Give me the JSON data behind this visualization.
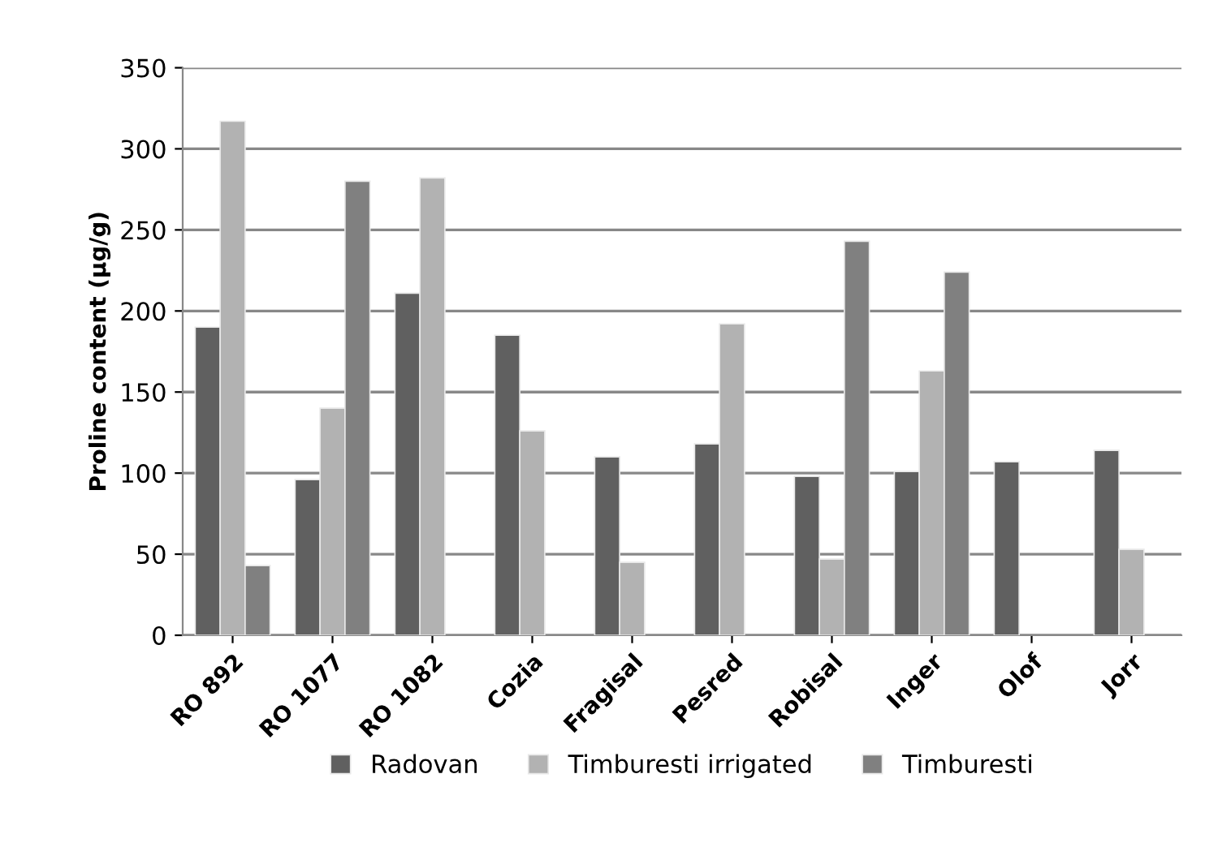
{
  "chart_data": {
    "type": "bar",
    "ylabel": "Proline content (µg/g)",
    "categories": [
      "RO 892",
      "RO 1077",
      "RO 1082",
      "Cozia",
      "Fragisal",
      "Pesred",
      "Robisal",
      "Inger",
      "Olof",
      "Jorr"
    ],
    "series": [
      {
        "name": "Radovan",
        "color": "#606060",
        "values": [
          190,
          96,
          211,
          185,
          110,
          118,
          98,
          101,
          107,
          114
        ]
      },
      {
        "name": "Timburesti irrigated",
        "color": "#b2b2b2",
        "values": [
          317,
          140,
          282,
          126,
          45,
          192,
          47,
          163,
          null,
          53
        ]
      },
      {
        "name": "Timburesti",
        "color": "#808080",
        "values": [
          43,
          280,
          null,
          null,
          null,
          null,
          243,
          224,
          null,
          null
        ]
      }
    ],
    "ylim": [
      0,
      350
    ],
    "yticks": [
      0,
      50,
      100,
      150,
      200,
      250,
      300,
      350
    ],
    "grid": "y",
    "legend": "bottom"
  }
}
